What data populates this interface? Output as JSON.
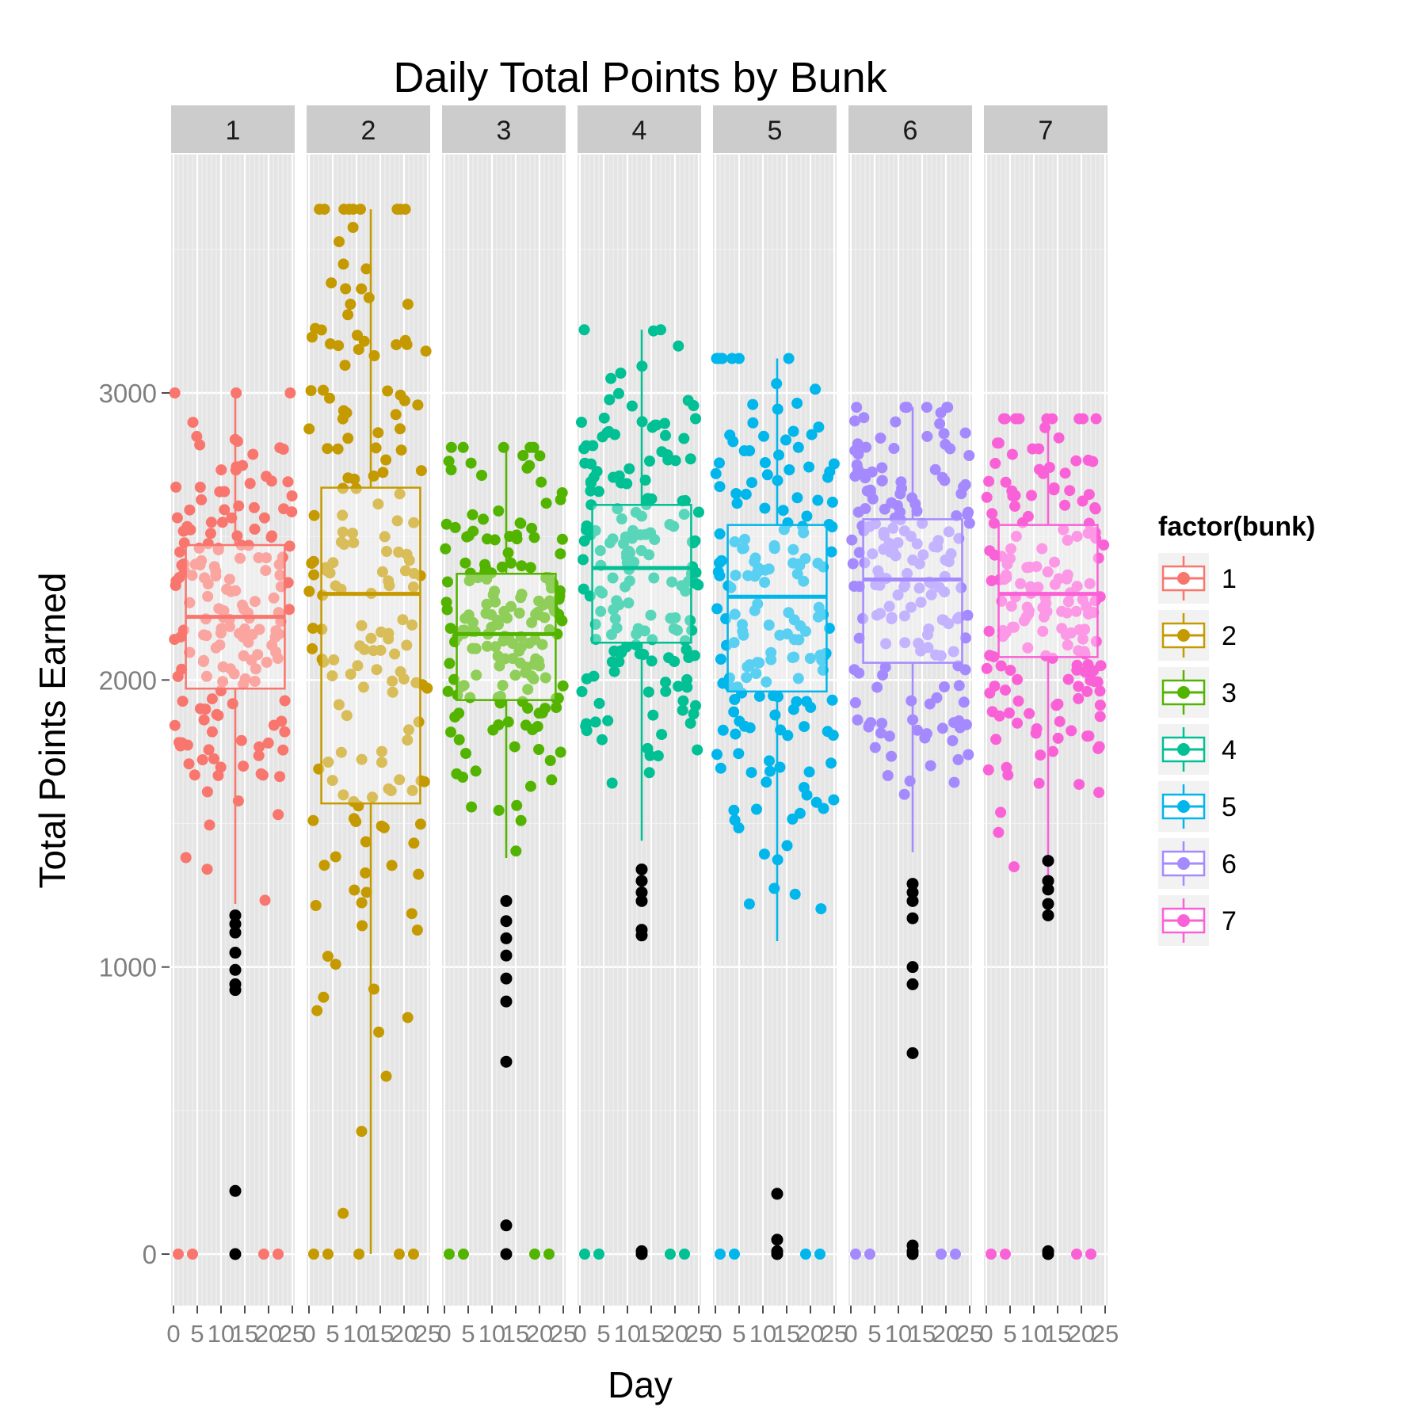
{
  "chart_data": {
    "type": "scatter",
    "overlay": "boxplot",
    "title": "Daily Total Points by Bunk",
    "xlabel": "Day",
    "ylabel": "Total Points Earned",
    "xlim": [
      0,
      25
    ],
    "ylim": [
      -180,
      3700
    ],
    "xticks": [
      0,
      5,
      10,
      15,
      20,
      25
    ],
    "xtick_labels": [
      "0",
      "5",
      "10",
      "15",
      "20",
      "25"
    ],
    "yticks": [
      0,
      1000,
      2000,
      3000
    ],
    "grid": true,
    "legend": {
      "title": "factor(bunk)",
      "position": "right"
    },
    "colors": {
      "1": "#F8766D",
      "2": "#C49A00",
      "3": "#53B400",
      "4": "#00C094",
      "5": "#00B6EB",
      "6": "#A58AFF",
      "7": "#FB61D7",
      "outlier": "#000000",
      "panel_bg": "#E5E5E5",
      "strip_bg": "#CCCCCC"
    },
    "facets": [
      {
        "label": "1",
        "box": {
          "q1": 1970,
          "median": 2220,
          "q3": 2470,
          "whisker_low": 1220,
          "whisker_high": 3000,
          "x": 13
        },
        "outliers": [
          1180,
          1150,
          1120,
          1050,
          990,
          940,
          920,
          220,
          0
        ]
      },
      {
        "label": "2",
        "box": {
          "q1": 1570,
          "median": 2300,
          "q3": 2670,
          "whisker_low": 0,
          "whisker_high": 3640,
          "x": 13
        },
        "outliers": []
      },
      {
        "label": "3",
        "box": {
          "q1": 1930,
          "median": 2160,
          "q3": 2370,
          "whisker_low": 1380,
          "whisker_high": 2810,
          "x": 13
        },
        "outliers": [
          1230,
          1160,
          1100,
          1040,
          960,
          880,
          670,
          100,
          0
        ]
      },
      {
        "label": "4",
        "box": {
          "q1": 2130,
          "median": 2390,
          "q3": 2610,
          "whisker_low": 1440,
          "whisker_high": 3220,
          "x": 13
        },
        "outliers": [
          1340,
          1300,
          1260,
          1230,
          1130,
          1110,
          10,
          0
        ]
      },
      {
        "label": "5",
        "box": {
          "q1": 1960,
          "median": 2290,
          "q3": 2540,
          "whisker_low": 1090,
          "whisker_high": 3120,
          "x": 13
        },
        "outliers": [
          210,
          50,
          10,
          0
        ]
      },
      {
        "label": "6",
        "box": {
          "q1": 2060,
          "median": 2350,
          "q3": 2560,
          "whisker_low": 1400,
          "whisker_high": 2950,
          "x": 13
        },
        "outliers": [
          1290,
          1260,
          1230,
          1170,
          1000,
          940,
          700,
          30,
          10,
          0
        ]
      },
      {
        "label": "7",
        "box": {
          "q1": 2080,
          "median": 2300,
          "q3": 2540,
          "whisker_low": 1280,
          "whisker_high": 2910,
          "x": 13
        },
        "outliers": [
          1370,
          1300,
          1270,
          1220,
          1180,
          10,
          0
        ]
      }
    ]
  }
}
